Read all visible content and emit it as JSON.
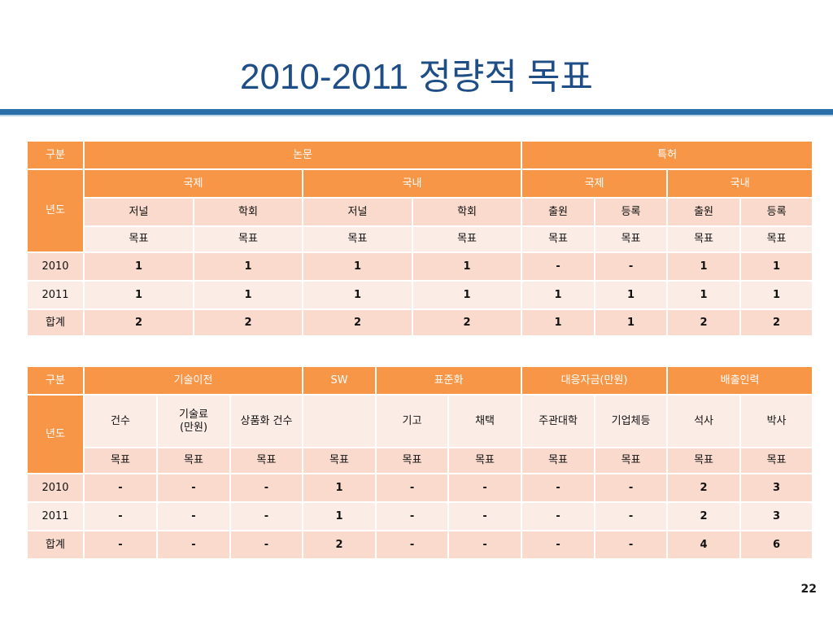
{
  "title": "2010-2011 정량적 목표",
  "page_number": "22",
  "tables": [
    {
      "rows": [
        [
          "구분",
          "논문",
          "특허"
        ],
        [
          "년도",
          "국제",
          "국내",
          "국제",
          "국내"
        ],
        [
          "저널",
          "학회",
          "저널",
          "학회",
          "출원",
          "등록",
          "출원",
          "등록"
        ],
        [
          "목표",
          "목표",
          "목표",
          "목표",
          "목표",
          "목표",
          "목표",
          "목표"
        ],
        [
          "2010",
          1,
          1,
          1,
          1,
          "-",
          "-",
          1,
          1
        ],
        [
          "2011",
          1,
          1,
          1,
          1,
          1,
          1,
          1,
          1
        ],
        [
          "합계",
          2,
          2,
          2,
          2,
          1,
          1,
          2,
          2
        ]
      ]
    },
    {
      "rows": [
        [
          "구분",
          "기술이전",
          "SW",
          "표준화",
          "대응자금(만원)",
          "배출인력"
        ],
        [
          "년도",
          "건수",
          "기술료\n(만원)",
          "상품화 건수",
          null,
          "기고",
          "채택",
          "주관대학",
          "기업체등",
          "석사",
          "박사"
        ],
        [
          "목표",
          "목표",
          "목표",
          "목표",
          "목표",
          "목표",
          "목표",
          "목표",
          "목표",
          "목표"
        ],
        [
          "2010",
          "-",
          "-",
          "-",
          1,
          "-",
          "-",
          "-",
          "-",
          2,
          3
        ],
        [
          "2011",
          "-",
          "-",
          "-",
          1,
          "-",
          "-",
          "-",
          "-",
          2,
          3
        ],
        [
          "합계",
          "-",
          "-",
          "-",
          2,
          "-",
          "-",
          "-",
          "-",
          4,
          6
        ]
      ]
    }
  ]
}
